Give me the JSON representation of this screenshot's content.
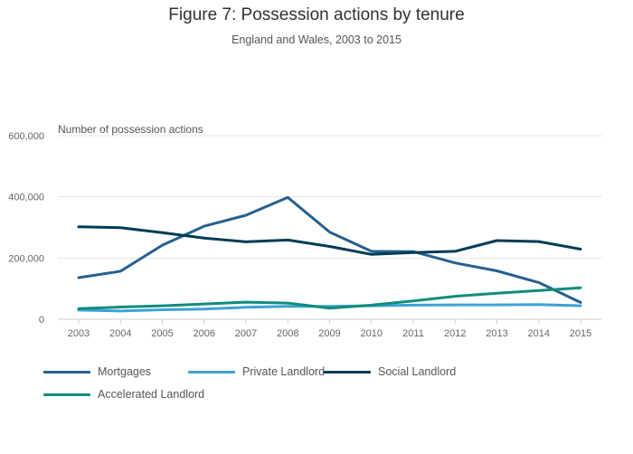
{
  "chart_data": {
    "type": "line",
    "title": "Figure 7: Possession actions by tenure",
    "subtitle": "England and Wales, 2003 to 2015",
    "ylabel": "Number of possession actions",
    "xlabel": "",
    "categories": [
      "2003",
      "2004",
      "2005",
      "2006",
      "2007",
      "2008",
      "2009",
      "2010",
      "2011",
      "2012",
      "2013",
      "2014",
      "2015"
    ],
    "ylim": [
      0,
      600000
    ],
    "yticks": [
      0,
      200000,
      400000,
      600000
    ],
    "ytick_labels": [
      "0",
      "200,000",
      "400,000",
      "600,000"
    ],
    "grid": true,
    "legend_position": "bottom",
    "series": [
      {
        "name": "Mortgages",
        "color": "#27608e",
        "values": [
          136000,
          157000,
          242000,
          304000,
          340000,
          398000,
          285000,
          222000,
          221000,
          184000,
          158000,
          120000,
          55000
        ]
      },
      {
        "name": "Private Landlord",
        "color": "#3ba3d5",
        "values": [
          30000,
          27000,
          31000,
          33000,
          39000,
          42000,
          42000,
          44000,
          46000,
          47000,
          47000,
          48000,
          44000
        ]
      },
      {
        "name": "Social Landlord",
        "color": "#003c57",
        "values": [
          302000,
          299000,
          283000,
          265000,
          253000,
          259000,
          238000,
          212000,
          218000,
          222000,
          257000,
          254000,
          229000
        ]
      },
      {
        "name": "Accelerated Landlord",
        "color": "#118c7b",
        "values": [
          35000,
          40000,
          44000,
          50000,
          56000,
          53000,
          36000,
          46000,
          60000,
          75000,
          85000,
          94000,
          103000
        ]
      }
    ]
  }
}
